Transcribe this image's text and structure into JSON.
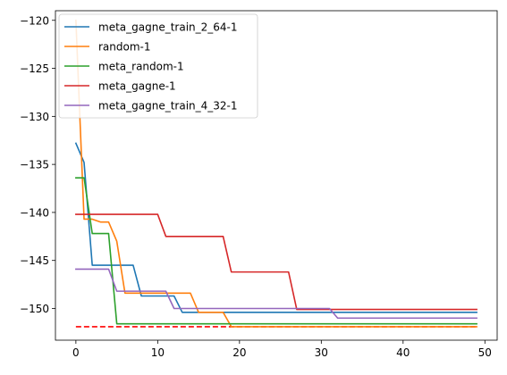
{
  "chart_data": {
    "type": "line",
    "title": "",
    "xlabel": "",
    "ylabel": "",
    "xlim": [
      -2.5,
      51.5
    ],
    "ylim": [
      -153.3,
      -119.0
    ],
    "x_ticks": [
      0,
      10,
      20,
      30,
      40,
      50
    ],
    "y_ticks": [
      -120,
      -125,
      -130,
      -135,
      -140,
      -145,
      -150
    ],
    "grid": false,
    "legend_position": "upper-left",
    "series": [
      {
        "name": "meta_gagne_train_2_64-1",
        "color": "#1f77b4",
        "x": [
          0,
          1,
          2,
          7,
          8,
          12,
          13,
          49
        ],
        "y": [
          -132.8,
          -134.8,
          -145.5,
          -145.5,
          -148.7,
          -148.7,
          -150.4,
          -150.4
        ]
      },
      {
        "name": "random-1",
        "color": "#ff7f0e",
        "x": [
          0,
          1,
          2,
          3,
          4,
          5,
          6,
          14,
          15,
          18,
          19,
          49
        ],
        "y": [
          -120.0,
          -140.7,
          -140.7,
          -141.0,
          -141.0,
          -143.0,
          -148.4,
          -148.4,
          -150.4,
          -150.4,
          -151.9,
          -151.9
        ]
      },
      {
        "name": "meta_random-1",
        "color": "#2ca02c",
        "x": [
          0,
          1,
          2,
          4,
          5,
          49
        ],
        "y": [
          -136.4,
          -136.4,
          -142.2,
          -142.2,
          -151.6,
          -151.6
        ]
      },
      {
        "name": "meta_gagne-1",
        "color": "#d62728",
        "x": [
          0,
          10,
          11,
          18,
          19,
          26,
          27,
          49
        ],
        "y": [
          -140.2,
          -140.2,
          -142.5,
          -142.5,
          -146.2,
          -146.2,
          -150.1,
          -150.1
        ]
      },
      {
        "name": "meta_gagne_train_4_32-1",
        "color": "#9467bd",
        "x": [
          0,
          4,
          5,
          11,
          12,
          31,
          32,
          49
        ],
        "y": [
          -145.9,
          -145.9,
          -148.2,
          -148.2,
          -150.0,
          -150.0,
          -151.0,
          -151.0
        ]
      }
    ],
    "reference_line": {
      "y": -151.9,
      "x_range": [
        0,
        49
      ],
      "color": "#ff0000",
      "style": "dashed"
    }
  }
}
